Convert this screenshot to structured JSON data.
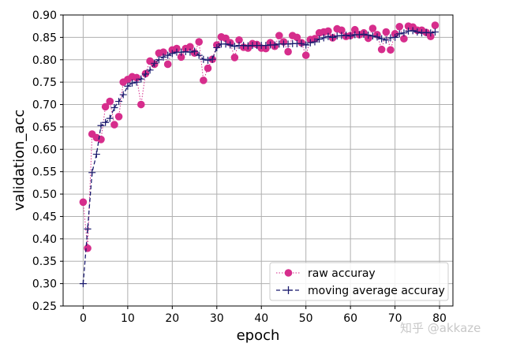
{
  "chart_data": {
    "type": "line",
    "xlabel": "epoch",
    "ylabel": "validation_acc",
    "xlim": [
      -4.5,
      83
    ],
    "ylim": [
      0.25,
      0.9
    ],
    "x_ticks": [
      0,
      10,
      20,
      30,
      40,
      50,
      60,
      70,
      80
    ],
    "y_ticks": [
      0.25,
      0.3,
      0.35,
      0.4,
      0.45,
      0.5,
      0.55,
      0.6,
      0.65,
      0.7,
      0.75,
      0.8,
      0.85,
      0.9
    ],
    "grid": true,
    "legend_position": "bottom-right",
    "x": [
      0,
      1,
      2,
      3,
      4,
      5,
      6,
      7,
      8,
      9,
      10,
      11,
      12,
      13,
      14,
      15,
      16,
      17,
      18,
      19,
      20,
      21,
      22,
      23,
      24,
      25,
      26,
      27,
      28,
      29,
      30,
      31,
      32,
      33,
      34,
      35,
      36,
      37,
      38,
      39,
      40,
      41,
      42,
      43,
      44,
      45,
      46,
      47,
      48,
      49,
      50,
      51,
      52,
      53,
      54,
      55,
      56,
      57,
      58,
      59,
      60,
      61,
      62,
      63,
      64,
      65,
      66,
      67,
      68,
      69,
      70,
      71,
      72,
      73,
      74,
      75,
      76,
      77,
      78,
      79
    ],
    "series": [
      {
        "name": "raw accuray",
        "style": "dotted-circle",
        "color": "#d62d8c",
        "values": [
          0.482,
          0.379,
          0.634,
          0.626,
          0.622,
          0.695,
          0.707,
          0.655,
          0.673,
          0.75,
          0.756,
          0.762,
          0.76,
          0.7,
          0.769,
          0.797,
          0.79,
          0.815,
          0.817,
          0.79,
          0.822,
          0.825,
          0.806,
          0.825,
          0.829,
          0.815,
          0.84,
          0.754,
          0.781,
          0.801,
          0.833,
          0.851,
          0.848,
          0.838,
          0.805,
          0.844,
          0.828,
          0.826,
          0.836,
          0.834,
          0.826,
          0.825,
          0.838,
          0.83,
          0.854,
          0.84,
          0.818,
          0.854,
          0.85,
          0.838,
          0.81,
          0.845,
          0.847,
          0.86,
          0.862,
          0.864,
          0.849,
          0.869,
          0.866,
          0.852,
          0.854,
          0.867,
          0.856,
          0.86,
          0.848,
          0.87,
          0.856,
          0.823,
          0.862,
          0.822,
          0.858,
          0.874,
          0.847,
          0.875,
          0.873,
          0.866,
          0.866,
          0.861,
          0.852,
          0.877
        ]
      },
      {
        "name": "moving average accuray",
        "style": "dashed-plus",
        "color": "#1a1a6e",
        "values": [
          0.3,
          0.422,
          0.548,
          0.589,
          0.653,
          0.66,
          0.669,
          0.693,
          0.707,
          0.722,
          0.741,
          0.748,
          0.75,
          0.757,
          0.768,
          0.777,
          0.792,
          0.8,
          0.806,
          0.81,
          0.814,
          0.817,
          0.817,
          0.818,
          0.817,
          0.819,
          0.81,
          0.801,
          0.799,
          0.801,
          0.827,
          0.835,
          0.835,
          0.833,
          0.83,
          0.832,
          0.832,
          0.831,
          0.832,
          0.832,
          0.832,
          0.832,
          0.833,
          0.833,
          0.835,
          0.835,
          0.835,
          0.836,
          0.836,
          0.836,
          0.833,
          0.838,
          0.84,
          0.846,
          0.849,
          0.852,
          0.85,
          0.853,
          0.854,
          0.855,
          0.853,
          0.856,
          0.856,
          0.857,
          0.855,
          0.853,
          0.851,
          0.847,
          0.844,
          0.849,
          0.85,
          0.858,
          0.86,
          0.864,
          0.865,
          0.862,
          0.86,
          0.861,
          0.86,
          0.862
        ]
      }
    ]
  },
  "watermark": "知乎 @akkaze",
  "colors": {
    "grid": "#b0b0b0",
    "frame": "#000000",
    "legend_border": "#cccccc"
  }
}
